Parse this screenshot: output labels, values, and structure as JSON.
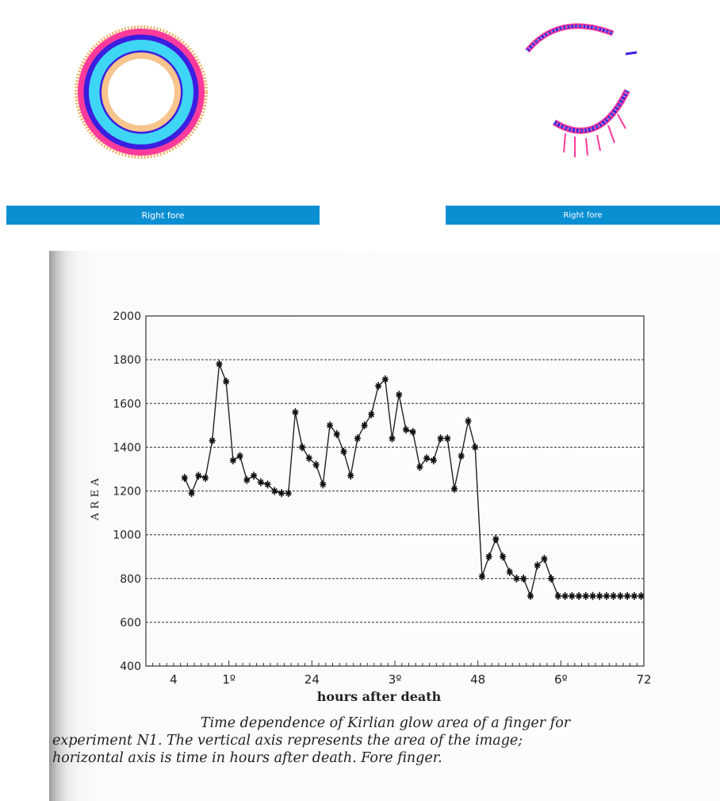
{
  "panels": [
    {
      "caption": "Right fore"
    },
    {
      "caption": "Right fore"
    }
  ],
  "chart_data": {
    "type": "line",
    "ylabel": "AREA",
    "xlabel": "hours after death",
    "ylim": [
      400,
      2000
    ],
    "xlim": [
      0,
      72
    ],
    "yticks": [
      400,
      600,
      800,
      1000,
      1200,
      1400,
      1600,
      1800,
      2000
    ],
    "xticks": [
      {
        "value": 4,
        "label": "4"
      },
      {
        "value": 12,
        "label": "1º"
      },
      {
        "value": 24,
        "label": "24"
      },
      {
        "value": 36,
        "label": "3º"
      },
      {
        "value": 48,
        "label": "48"
      },
      {
        "value": 60,
        "label": "6º"
      },
      {
        "value": 72,
        "label": "72"
      }
    ],
    "grid": true,
    "series": [
      {
        "x": [
          5.6,
          6.6,
          7.6,
          8.6,
          9.6,
          10.6,
          11.6,
          12.6,
          13.6,
          14.6,
          15.6,
          16.6,
          17.6,
          18.6,
          19.6,
          20.6,
          21.6,
          22.6,
          23.6,
          24.6,
          25.6,
          26.6,
          27.6,
          28.6,
          29.6,
          30.6,
          31.6,
          32.6,
          33.6,
          34.6,
          35.6,
          36.6,
          37.6,
          38.6,
          39.6,
          40.6,
          41.6,
          42.6,
          43.6,
          44.6,
          45.6,
          46.6,
          47.6,
          48.6,
          49.6,
          50.6,
          51.6,
          52.6,
          53.6,
          54.6,
          55.6,
          56.6,
          57.6,
          58.6,
          59.6,
          60.6,
          61.6,
          62.6,
          63.6,
          64.6,
          65.6,
          66.6,
          67.6,
          68.6,
          69.6,
          70.6,
          71.6
        ],
        "values": [
          1260,
          1190,
          1270,
          1260,
          1430,
          1780,
          1700,
          1340,
          1360,
          1250,
          1270,
          1240,
          1230,
          1200,
          1190,
          1190,
          1560,
          1400,
          1350,
          1320,
          1230,
          1500,
          1460,
          1380,
          1270,
          1440,
          1500,
          1550,
          1680,
          1710,
          1440,
          1640,
          1480,
          1470,
          1310,
          1350,
          1340,
          1440,
          1440,
          1210,
          1360,
          1520,
          1400,
          810,
          900,
          980,
          900,
          830,
          800,
          800,
          720,
          860,
          890,
          800,
          720,
          720,
          720,
          720,
          720,
          720,
          720,
          720,
          720,
          720,
          720,
          720,
          720
        ]
      }
    ],
    "caption": [
      "Time dependence of Kirlian glow area of a finger for",
      "experiment N1. The vertical axis represents the area of the image;",
      "horizontal axis is time in hours after death. Fore finger."
    ]
  }
}
